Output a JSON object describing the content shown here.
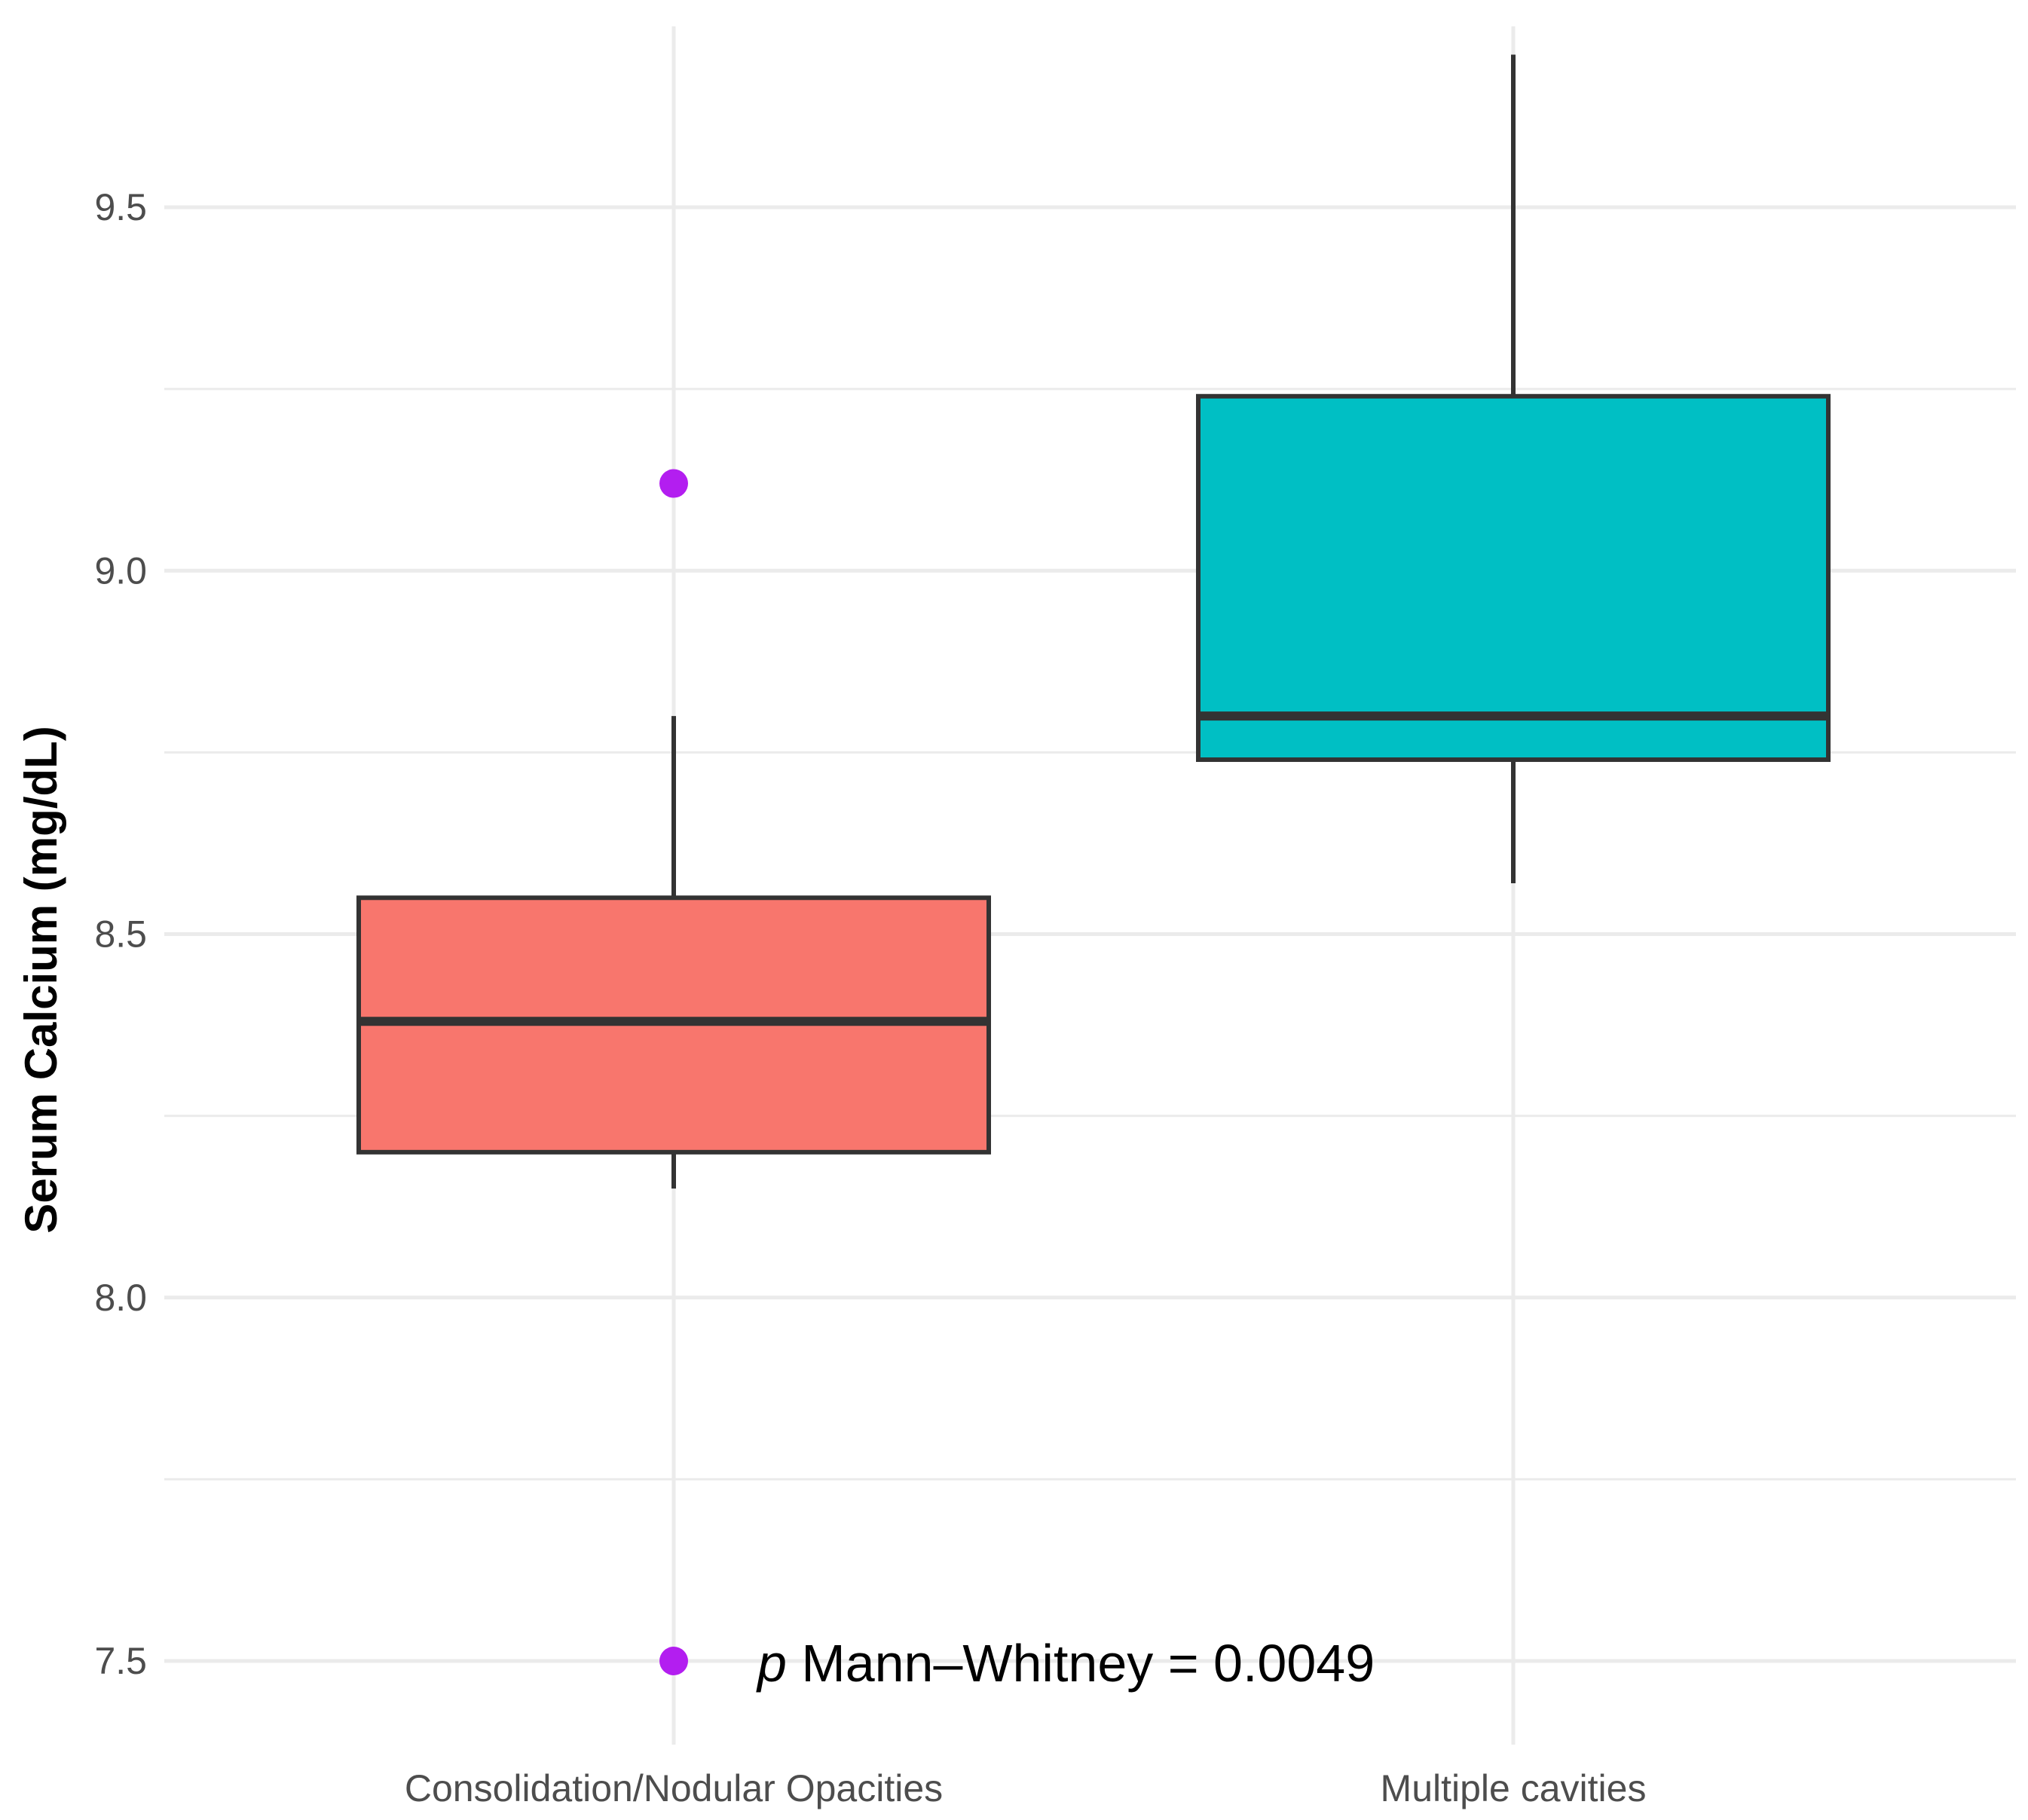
{
  "chart_data": {
    "type": "box",
    "title": "",
    "xlabel": "",
    "ylabel": "Serum Calcium (mg/dL)",
    "ylim": [
      7.38,
      9.74
    ],
    "yticks": [
      {
        "value": 7.5,
        "label": "7.5"
      },
      {
        "value": 8.0,
        "label": "8.0"
      },
      {
        "value": 8.5,
        "label": "8.5"
      },
      {
        "value": 9.0,
        "label": "9.0"
      },
      {
        "value": 9.5,
        "label": "9.5"
      }
    ],
    "minor_gridlines": [
      7.75,
      8.25,
      8.75,
      9.25
    ],
    "grid": true,
    "categories": [
      "Consolidation/Nodular Opacities",
      "Multiple cavities"
    ],
    "boxes": [
      {
        "category": "Consolidation/Nodular Opacities",
        "whisker_low": 8.15,
        "q1": 8.2,
        "median": 8.38,
        "q3": 8.55,
        "whisker_high": 8.8,
        "outliers": [
          9.12,
          7.5
        ],
        "fill": "#F8766D"
      },
      {
        "category": "Multiple cavities",
        "whisker_low": 8.57,
        "q1": 8.74,
        "median": 8.8,
        "q3": 9.24,
        "whisker_high": 9.71,
        "outliers": [],
        "fill": "#00BFC4"
      }
    ],
    "outlier_color": "#B31EF0",
    "annotation": {
      "italic": "p",
      "text": " Mann–Whitney = 0.0049"
    }
  }
}
